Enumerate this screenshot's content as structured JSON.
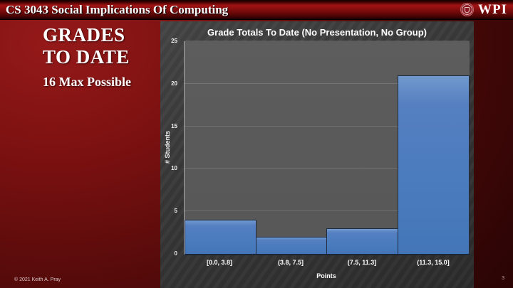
{
  "header": {
    "course_title": "CS 3043 Social Implications Of Computing",
    "logo_text": "WPI"
  },
  "sidebar": {
    "title_lines": [
      "GRADES",
      "TO DATE"
    ],
    "subtitle": "16 Max Possible"
  },
  "footer": {
    "copyright": "© 2021 Keith A. Pray",
    "page_number": "3"
  },
  "chart_data": {
    "type": "bar",
    "title": "Grade Totals To Date (No Presentation, No Group)",
    "categories": [
      "[0.0, 3.8]",
      "(3.8, 7.5]",
      "(7.5, 11.3]",
      "(11.3, 15.0]"
    ],
    "values": [
      4,
      2,
      3,
      21
    ],
    "xlabel": "Points",
    "ylabel": "# Students",
    "ylim": [
      0,
      25
    ],
    "ytick_step": 5,
    "grid": true,
    "legend": "none",
    "bar_color": "#4E80C1",
    "bar_border_color": "#1F2D42",
    "plot_bg_color": "#595959",
    "panel_bg_color": "#333333"
  },
  "colors": {
    "slide_red": "#8A1212",
    "header_red": "#9E1212",
    "text": "#FFFFFF"
  }
}
